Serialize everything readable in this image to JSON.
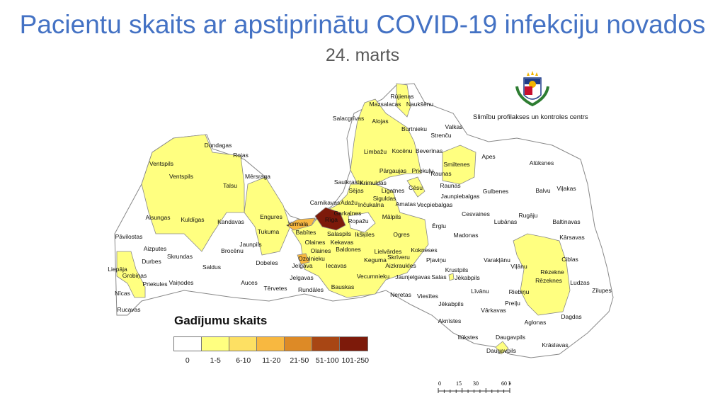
{
  "title": "Pacientu skaits ar apstiprinātu COVID-19 infekciju novados",
  "subtitle": "24. marts",
  "logo": {
    "text": "Slimību profilakses un kontroles centrs",
    "icon": "latvia-coat-of-arms-icon"
  },
  "legend": {
    "title": "Gadījumu skaits",
    "classes": [
      {
        "label": "0",
        "color": "#ffffff"
      },
      {
        "label": "1-5",
        "color": "#ffff80"
      },
      {
        "label": "6-10",
        "color": "#fde063"
      },
      {
        "label": "11-20",
        "color": "#f8b840"
      },
      {
        "label": "21-50",
        "color": "#dd8a26"
      },
      {
        "label": "51-100",
        "color": "#a84614"
      },
      {
        "label": "101-250",
        "color": "#7d1a0a"
      }
    ]
  },
  "scale_bar": {
    "ticks": [
      "0",
      "15",
      "30",
      "60 Km"
    ]
  },
  "map_regions": [
    {
      "name": "Rīga",
      "class": "101-250"
    },
    {
      "name": "Jūrmala",
      "class": "11-20"
    },
    {
      "name": "Ozolnieku",
      "class": "11-20"
    },
    {
      "name": "Rēzeknes",
      "class": "1-5"
    },
    {
      "name": "Smiltenes",
      "class": "1-5"
    }
  ],
  "labels": [
    "Rūjienas",
    "Mazsalacas",
    "Naukšēnu",
    "Salacgrīvas",
    "Alojas",
    "Burtnieku",
    "Valkas",
    "Strenču",
    "Dundagas",
    "Rojas",
    "Limbažu",
    "Kocēnu",
    "Beverīnas",
    "Apes",
    "Ventspils",
    "Ventspils",
    "Mērsraga",
    "Talsu",
    "Smiltenes",
    "Alūksnes",
    "Pārgaujas",
    "Priekuļu",
    "Raunas",
    "Saulkrastu",
    "Krimuldas",
    "Sējas",
    "Līgatnes",
    "Cēsu",
    "Raunas",
    "Gulbenes",
    "Balvu",
    "Viļakas",
    "Jaunpiebalgas",
    "Carnikavas",
    "Adažu",
    "Inčukalna",
    "Siguldas",
    "Amatas",
    "Vecpiebalgas",
    "Garkalnes",
    "Rīga",
    "Ropažu",
    "Mālpils",
    "Jūrmala",
    "Babītes",
    "Salaspils",
    "Ikšķiles",
    "Ogres",
    "Ērglu",
    "Olaines",
    "Kekavas",
    "Olaines",
    "Baldones",
    "Lielvārdes",
    "Kokneses",
    "Skrīveru",
    "Ozolnieku",
    "Keguma",
    "Aizkraukles",
    "Jelgava",
    "Iecavas",
    "Jelgavas",
    "Vecumnieku",
    "Jaunjelgavas",
    "Bauskas",
    "Rundāles",
    "Neretas",
    "Viesītes",
    "Salas",
    "Pļaviņu",
    "Madonas",
    "Cesvaines",
    "Lubānas",
    "Rugāju",
    "Baltinavas",
    "Kārsavas",
    "Varakļānu",
    "Viļānu",
    "Rēzekne",
    "Rēzeknes",
    "Ciblas",
    "Ludzas",
    "Zilupes",
    "Krustpils",
    "Jēkabpils",
    "Līvānu",
    "Riebiņu",
    "Preiļu",
    "Jēkabpils",
    "Vārkavas",
    "Aknīstes",
    "Aglonas",
    "Dagdas",
    "Ilūkstes",
    "Daugavpils",
    "Daugavpils",
    "Krāslavas",
    "Alsungas",
    "Kuldīgas",
    "Kandavas",
    "Engures",
    "Tukuma",
    "Pāvilostas",
    "Aizputes",
    "Jaunpils",
    "Brocēnu",
    "Skrundas",
    "Durbes",
    "Dobeles",
    "Saldus",
    "Liepāja",
    "Grobiņas",
    "Priekules",
    "Vaiņodes",
    "Auces",
    "Tērvetes",
    "Nīcas",
    "Rucavas"
  ]
}
